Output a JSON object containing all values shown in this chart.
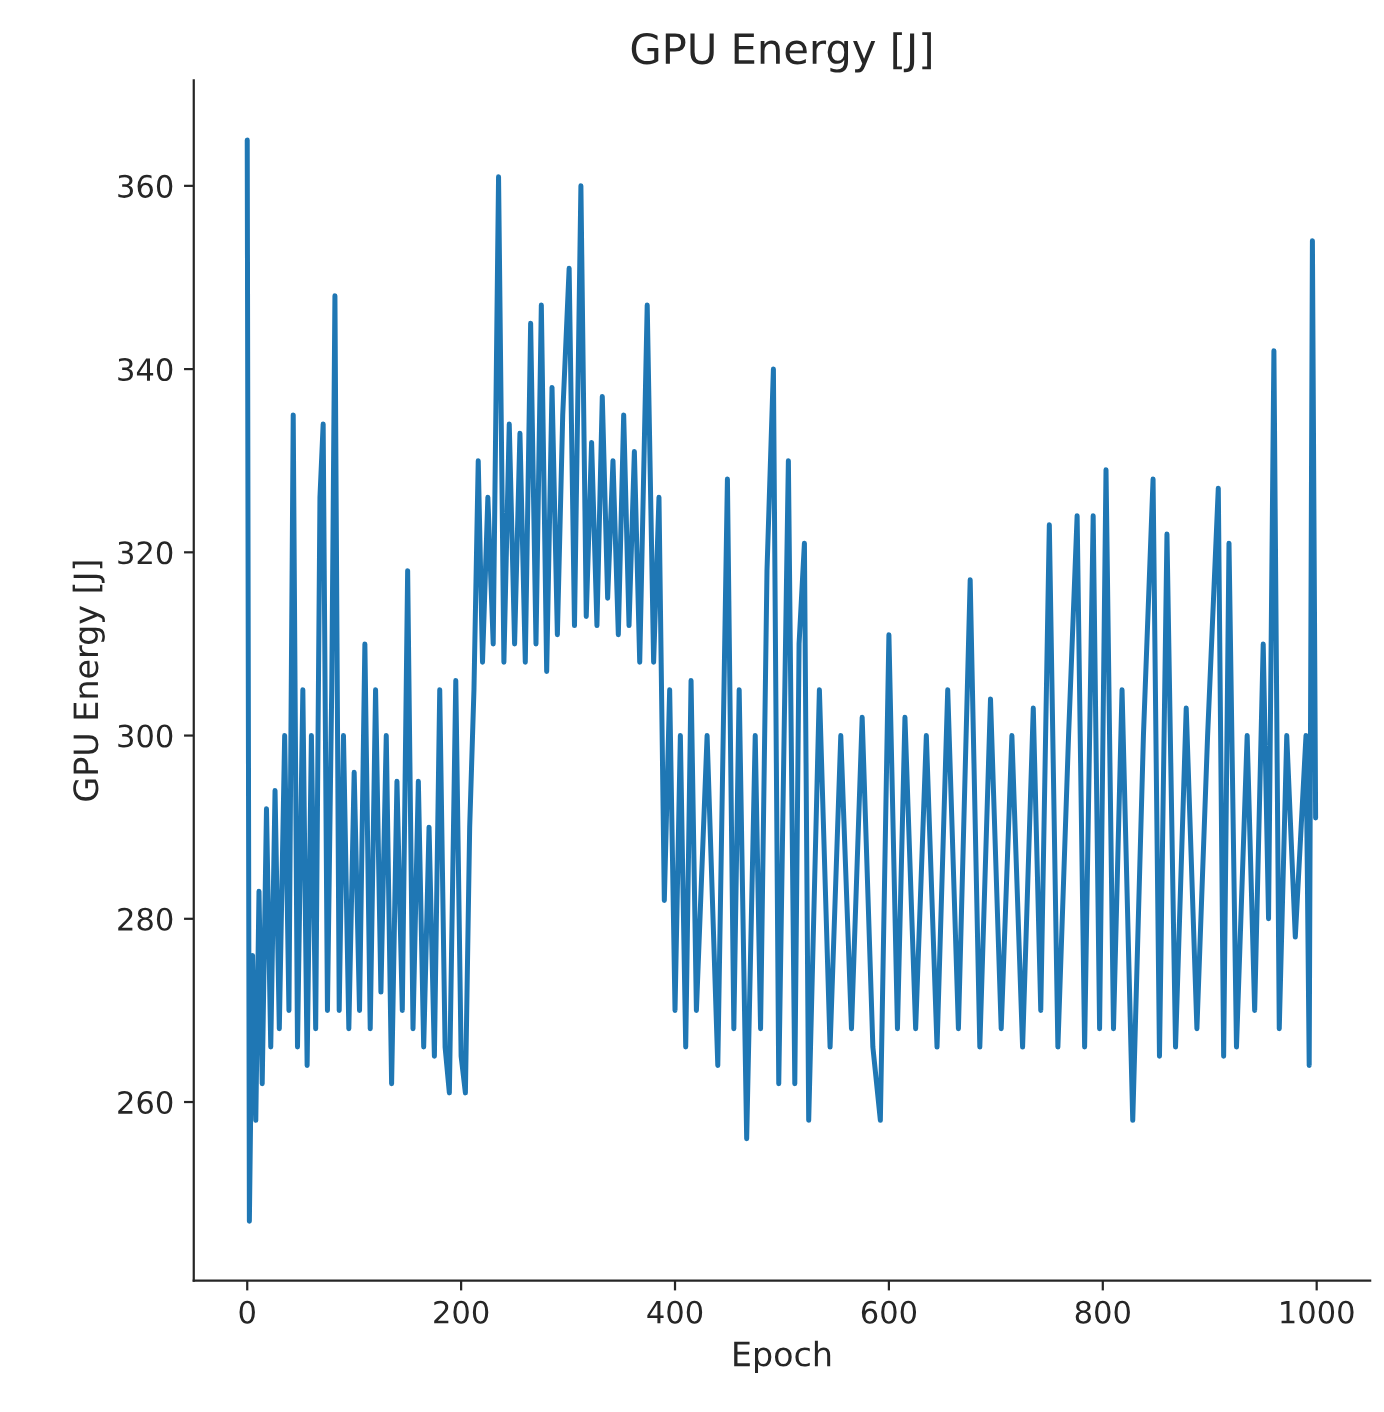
{
  "chart_data": {
    "type": "line",
    "title": "GPU Energy [J]",
    "xlabel": "Epoch",
    "ylabel": "GPU Energy [J]",
    "x": [
      0,
      2,
      5,
      8,
      11,
      14,
      18,
      22,
      26,
      30,
      35,
      39,
      43,
      47,
      52,
      56,
      60,
      64,
      68,
      71,
      75,
      79,
      82,
      86,
      90,
      95,
      100,
      105,
      110,
      115,
      120,
      125,
      130,
      135,
      140,
      145,
      150,
      155,
      160,
      165,
      170,
      175,
      180,
      185,
      189,
      195,
      200,
      204,
      208,
      212,
      216,
      220,
      225,
      230,
      235,
      240,
      245,
      250,
      255,
      260,
      265,
      270,
      275,
      280,
      285,
      290,
      295,
      301,
      306,
      312,
      317,
      322,
      327,
      332,
      337,
      342,
      347,
      352,
      357,
      362,
      367,
      374,
      380,
      385,
      390,
      395,
      400,
      405,
      410,
      415,
      420,
      430,
      440,
      449,
      455,
      460,
      467,
      475,
      480,
      486,
      492,
      497,
      502,
      506,
      512,
      516,
      521,
      525,
      535,
      545,
      555,
      565,
      575,
      585,
      592,
      600,
      608,
      615,
      625,
      635,
      645,
      655,
      665,
      676,
      685,
      695,
      705,
      715,
      725,
      735,
      742,
      750,
      758,
      768,
      776,
      783,
      791,
      797,
      803,
      810,
      818,
      828,
      838,
      847,
      853,
      860,
      868,
      878,
      888,
      898,
      908,
      913,
      918,
      925,
      935,
      942,
      950,
      955,
      960,
      965,
      972,
      980,
      990,
      993,
      996,
      999
    ],
    "series": [
      {
        "color": "#1f77b4",
        "values": [
          365,
          247,
          276,
          258,
          283,
          262,
          292,
          266,
          294,
          268,
          300,
          270,
          335,
          266,
          305,
          264,
          300,
          268,
          326,
          334,
          270,
          305,
          348,
          270,
          300,
          268,
          296,
          270,
          310,
          268,
          305,
          272,
          300,
          262,
          295,
          270,
          318,
          268,
          295,
          266,
          290,
          265,
          305,
          266,
          261,
          306,
          265,
          261,
          290,
          305,
          330,
          308,
          326,
          310,
          361,
          308,
          334,
          310,
          333,
          308,
          345,
          310,
          347,
          307,
          338,
          311,
          335,
          351,
          312,
          360,
          313,
          332,
          312,
          337,
          315,
          330,
          311,
          335,
          312,
          331,
          308,
          347,
          308,
          326,
          282,
          305,
          270,
          300,
          266,
          306,
          270,
          300,
          264,
          328,
          268,
          305,
          256,
          300,
          268,
          318,
          340,
          262,
          300,
          330,
          262,
          310,
          321,
          258,
          305,
          266,
          300,
          268,
          302,
          266,
          258,
          311,
          268,
          302,
          268,
          300,
          266,
          305,
          268,
          317,
          266,
          304,
          268,
          300,
          266,
          303,
          270,
          323,
          266,
          300,
          324,
          266,
          324,
          268,
          329,
          268,
          305,
          258,
          300,
          328,
          265,
          322,
          266,
          303,
          268,
          300,
          327,
          265,
          321,
          266,
          300,
          270,
          310,
          280,
          342,
          268,
          300,
          278,
          300,
          264,
          354,
          291
        ]
      }
    ],
    "xlim": [
      -50,
      1050
    ],
    "ylim": [
      240.5,
      371.5
    ],
    "xticks": [
      0,
      200,
      400,
      600,
      800,
      1000
    ],
    "yticks": [
      260,
      280,
      300,
      320,
      340,
      360
    ],
    "grid": false,
    "legend": false
  }
}
